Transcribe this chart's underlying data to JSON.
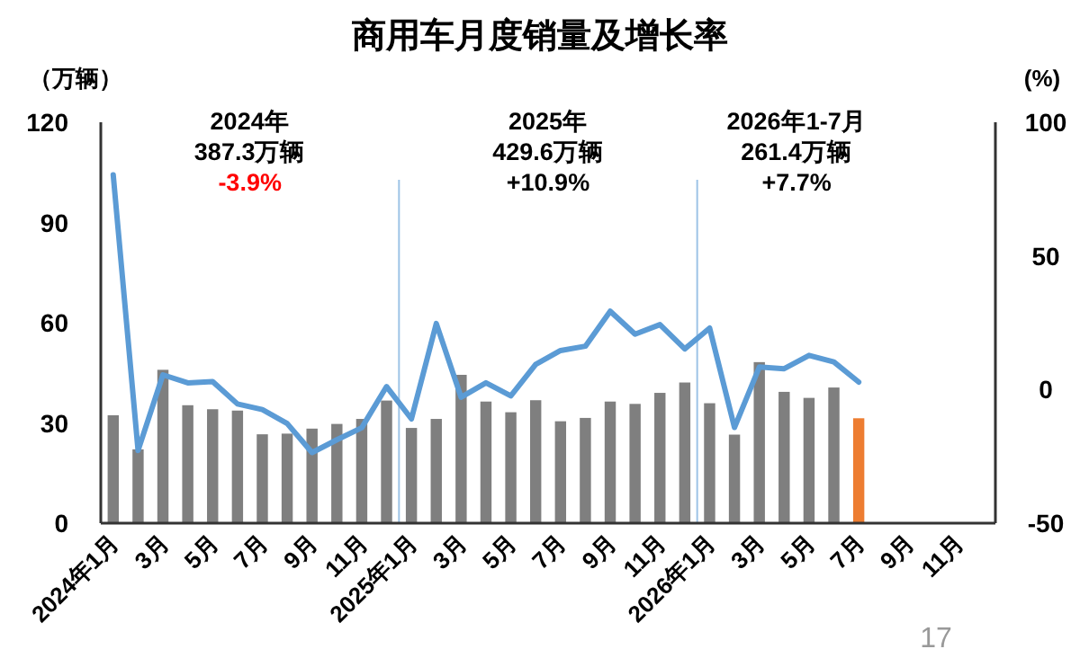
{
  "chart_data": {
    "type": "bar",
    "title": "商用车月度销量及增长率",
    "ylabel": "（万辆）",
    "y2label": "(%)",
    "categories": [
      "2024年1月",
      null,
      "3月",
      null,
      "5月",
      null,
      "7月",
      null,
      "9月",
      null,
      "11月",
      null,
      "2025年1月",
      null,
      "3月",
      null,
      "5月",
      null,
      "7月",
      null,
      "9月",
      null,
      "11月",
      null,
      "2026年1月",
      null,
      "3月",
      null,
      "5月",
      null,
      "7月",
      null,
      "9月",
      null,
      "11月",
      null
    ],
    "series": [
      {
        "colors": [
          "#7f7f7f",
          "#7f7f7f",
          "#7f7f7f",
          "#7f7f7f",
          "#7f7f7f",
          "#7f7f7f",
          "#7f7f7f",
          "#7f7f7f",
          "#7f7f7f",
          "#7f7f7f",
          "#7f7f7f",
          "#7f7f7f",
          "#7f7f7f",
          "#7f7f7f",
          "#7f7f7f",
          "#7f7f7f",
          "#7f7f7f",
          "#7f7f7f",
          "#7f7f7f",
          "#7f7f7f",
          "#7f7f7f",
          "#7f7f7f",
          "#7f7f7f",
          "#7f7f7f",
          "#7f7f7f",
          "#7f7f7f",
          "#7f7f7f",
          "#7f7f7f",
          "#7f7f7f",
          "#7f7f7f",
          "#ed7d31",
          null,
          null,
          null,
          null,
          null
        ],
        "values": [
          32.3,
          22.1,
          45.9,
          35.3,
          34.1,
          33.7,
          26.6,
          26.8,
          28.3,
          29.7,
          31.2,
          36.7,
          28.5,
          31.2,
          44.4,
          36.4,
          33.2,
          36.8,
          30.5,
          31.5,
          36.4,
          35.7,
          39.0,
          42.1,
          35.9,
          26.5,
          48.2,
          39.3,
          37.5,
          40.6,
          31.4,
          null,
          null,
          null,
          null,
          null
        ]
      },
      {
        "type": "line",
        "axis": "y2",
        "color": "#5b9bd5",
        "values": [
          80.3,
          -22.8,
          5.5,
          2.5,
          3.0,
          -5.4,
          -7.5,
          -12.7,
          -23.6,
          -18.8,
          -14.3,
          1.1,
          -11.0,
          24.7,
          -2.9,
          2.5,
          -2.4,
          9.4,
          14.6,
          16.2,
          29.3,
          20.7,
          24.3,
          15.2,
          23.0,
          -14.2,
          8.4,
          7.8,
          12.8,
          10.3,
          2.8,
          null,
          null,
          null,
          null,
          null
        ]
      }
    ],
    "ylim": [
      0,
      120
    ],
    "yticks": [
      0,
      30,
      60,
      90,
      120
    ],
    "y2lim": [
      -50,
      100
    ],
    "y2ticks": [
      -50,
      0,
      50,
      100
    ],
    "annotations": [
      "2024年",
      "387.3万辆",
      "-3.9%",
      "2025年",
      "429.6万辆",
      "+10.9%",
      "2026年1-7月",
      "261.4万辆",
      "+7.7%",
      "17"
    ]
  }
}
